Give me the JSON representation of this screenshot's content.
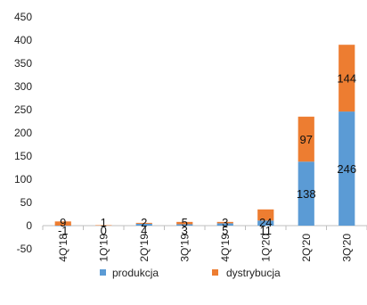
{
  "chart_data": {
    "type": "bar",
    "stacked": true,
    "categories": [
      "4Q'18",
      "1Q'19",
      "2Q'19",
      "3Q'19",
      "4Q'19",
      "1Q'20",
      "2Q'20",
      "3Q'20"
    ],
    "series": [
      {
        "name": "produkcja",
        "color": "#5B9BD5",
        "values": [
          -1,
          0,
          4,
          3,
          5,
          11,
          138,
          246
        ],
        "labels": [
          "-1",
          "0",
          "4",
          "3",
          "5",
          "11",
          "138",
          "246"
        ]
      },
      {
        "name": "dystrybucja",
        "color": "#ED7D31",
        "values": [
          9,
          1,
          2,
          5,
          3,
          24,
          97,
          144
        ],
        "labels": [
          "9",
          "1",
          "2",
          "5",
          "3",
          "24",
          "97",
          "144"
        ]
      }
    ],
    "y_ticks": [
      "-50",
      "0",
      "50",
      "100",
      "150",
      "200",
      "250",
      "300",
      "350",
      "400",
      "450"
    ],
    "ylim": [
      -50,
      450
    ],
    "title": "",
    "xlabel": "",
    "ylabel": "",
    "grid": false,
    "legend": "bottom"
  }
}
